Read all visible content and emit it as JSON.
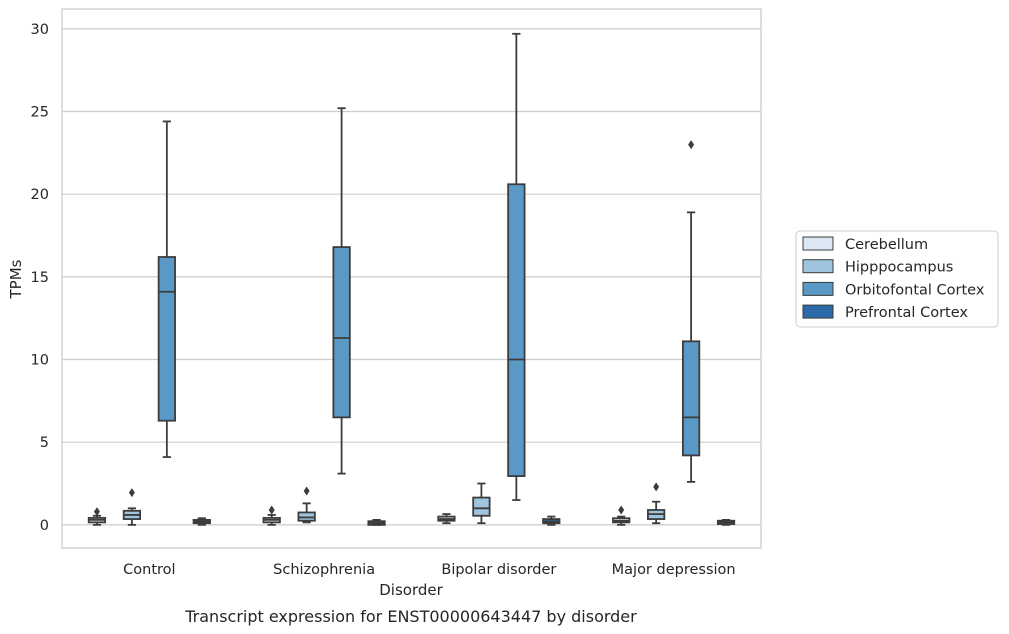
{
  "chart_data": {
    "type": "boxplot",
    "caption": "Transcript expression for ENST00000643447 by disorder",
    "xlabel": "Disorder",
    "ylabel": "TPMs",
    "ylim": [
      -1.4,
      31.2
    ],
    "yticks": [
      0,
      5,
      10,
      15,
      20,
      25,
      30
    ],
    "grid": "horizontal",
    "legend_position": "right",
    "categories": [
      "Control",
      "Schizophrenia",
      "Bipolar disorder",
      "Major depression"
    ],
    "series": [
      {
        "name": "Cerebellum",
        "color": "#dbe7f2",
        "boxes": [
          {
            "whisker_low": 0.0,
            "q1": 0.15,
            "median": 0.3,
            "q3": 0.42,
            "whisker_high": 0.55,
            "outliers": [
              0.8
            ]
          },
          {
            "whisker_low": 0.0,
            "q1": 0.15,
            "median": 0.3,
            "q3": 0.42,
            "whisker_high": 0.6,
            "outliers": [
              0.9
            ]
          },
          {
            "whisker_low": 0.1,
            "q1": 0.25,
            "median": 0.35,
            "q3": 0.5,
            "whisker_high": 0.65,
            "outliers": []
          },
          {
            "whisker_low": 0.0,
            "q1": 0.15,
            "median": 0.25,
            "q3": 0.4,
            "whisker_high": 0.5,
            "outliers": [
              0.9
            ]
          }
        ]
      },
      {
        "name": "Hipppocampus",
        "color": "#9ec4de",
        "boxes": [
          {
            "whisker_low": 0.0,
            "q1": 0.35,
            "median": 0.6,
            "q3": 0.85,
            "whisker_high": 1.0,
            "outliers": [
              1.95
            ]
          },
          {
            "whisker_low": 0.15,
            "q1": 0.25,
            "median": 0.45,
            "q3": 0.75,
            "whisker_high": 1.3,
            "outliers": [
              2.05
            ]
          },
          {
            "whisker_low": 0.1,
            "q1": 0.55,
            "median": 1.0,
            "q3": 1.65,
            "whisker_high": 2.5,
            "outliers": []
          },
          {
            "whisker_low": 0.1,
            "q1": 0.35,
            "median": 0.65,
            "q3": 0.9,
            "whisker_high": 1.4,
            "outliers": [
              2.3
            ]
          }
        ]
      },
      {
        "name": "Orbitofontal Cortex",
        "color": "#5a99c5",
        "boxes": [
          {
            "whisker_low": 4.1,
            "q1": 6.3,
            "median": 14.1,
            "q3": 16.2,
            "whisker_high": 24.4,
            "outliers": []
          },
          {
            "whisker_low": 3.1,
            "q1": 6.5,
            "median": 11.3,
            "q3": 16.8,
            "whisker_high": 25.2,
            "outliers": []
          },
          {
            "whisker_low": 1.5,
            "q1": 2.95,
            "median": 10.0,
            "q3": 20.6,
            "whisker_high": 29.7,
            "outliers": []
          },
          {
            "whisker_low": 2.6,
            "q1": 4.2,
            "median": 6.5,
            "q3": 11.1,
            "whisker_high": 18.9,
            "outliers": [
              23.0
            ]
          }
        ]
      },
      {
        "name": "Prefrontal Cortex",
        "color": "#2c6aa8",
        "boxes": [
          {
            "whisker_low": 0.0,
            "q1": 0.1,
            "median": 0.2,
            "q3": 0.3,
            "whisker_high": 0.4,
            "outliers": []
          },
          {
            "whisker_low": 0.0,
            "q1": 0.0,
            "median": 0.1,
            "q3": 0.22,
            "whisker_high": 0.3,
            "outliers": []
          },
          {
            "whisker_low": 0.0,
            "q1": 0.1,
            "median": 0.2,
            "q3": 0.35,
            "whisker_high": 0.5,
            "outliers": []
          },
          {
            "whisker_low": 0.0,
            "q1": 0.05,
            "median": 0.15,
            "q3": 0.25,
            "whisker_high": 0.3,
            "outliers": []
          }
        ]
      }
    ]
  }
}
